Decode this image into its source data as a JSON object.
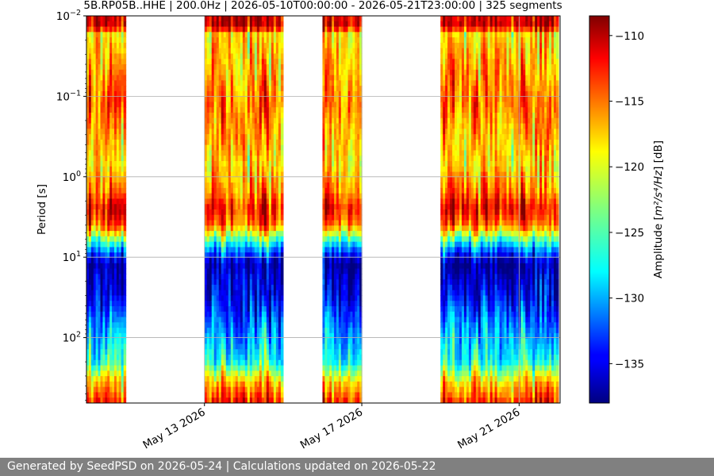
{
  "chart_data": {
    "type": "heatmap",
    "title": "5B.RP05B..HHE | 200.0Hz | 2026-05-10T00:00:00 - 2026-05-21T23:00:00 | 325 segments",
    "ylabel": "Period [s]",
    "xlabel": "",
    "y_scale": "log",
    "y_inverted": true,
    "y_range": [
      0.01,
      650
    ],
    "y_ticks": [
      {
        "value": 0.01,
        "base": "10",
        "exp": "−2"
      },
      {
        "value": 0.1,
        "base": "10",
        "exp": "−1"
      },
      {
        "value": 1,
        "base": "10",
        "exp": "0"
      },
      {
        "value": 10,
        "base": "10",
        "exp": "1"
      },
      {
        "value": 100,
        "base": "10",
        "exp": "2"
      }
    ],
    "x_range": [
      "2026-05-10",
      "2026-05-22T01:00"
    ],
    "x_ticks": [
      {
        "date": "2026-05-13",
        "label": "May 13 2026"
      },
      {
        "date": "2026-05-17",
        "label": "May 17 2026"
      },
      {
        "date": "2026-05-21",
        "label": "May 21 2026"
      }
    ],
    "data_segments": [
      {
        "start": "2026-05-10T00:00",
        "end": "2026-05-11T00:00"
      },
      {
        "start": "2026-05-13T00:00",
        "end": "2026-05-15T00:00"
      },
      {
        "start": "2026-05-16T00:00",
        "end": "2026-05-17T00:00"
      },
      {
        "start": "2026-05-19T00:00",
        "end": "2026-05-22T00:00"
      }
    ],
    "amplitude_profile_db": [
      {
        "period": 0.01,
        "db": -111
      },
      {
        "period": 0.014,
        "db": -111
      },
      {
        "period": 0.016,
        "db": -119
      },
      {
        "period": 0.05,
        "db": -117
      },
      {
        "period": 0.12,
        "db": -115
      },
      {
        "period": 0.3,
        "db": -117
      },
      {
        "period": 0.7,
        "db": -119
      },
      {
        "period": 1.5,
        "db": -116
      },
      {
        "period": 2.5,
        "db": -112
      },
      {
        "period": 4,
        "db": -115
      },
      {
        "period": 6,
        "db": -124
      },
      {
        "period": 8,
        "db": -130
      },
      {
        "period": 12,
        "db": -137
      },
      {
        "period": 30,
        "db": -135
      },
      {
        "period": 80,
        "db": -130
      },
      {
        "period": 200,
        "db": -126
      },
      {
        "period": 350,
        "db": -118
      },
      {
        "period": 650,
        "db": -113
      }
    ],
    "grid": true,
    "colorbar": {
      "label_prefix": "Amplitude [",
      "label_unit": "m²/s⁴/Hz",
      "label_suffix": "] [dB]",
      "range": [
        -138,
        -108.5
      ],
      "ticks": [
        "−110",
        "−115",
        "−120",
        "−125",
        "−130",
        "−135"
      ],
      "tick_values": [
        -110,
        -115,
        -120,
        -125,
        -130,
        -135
      ],
      "colormap": "jet"
    }
  },
  "footer": {
    "text": "Generated by SeedPSD on 2026-05-24 | Calculations updated on 2026-05-22",
    "background": "#808080"
  }
}
